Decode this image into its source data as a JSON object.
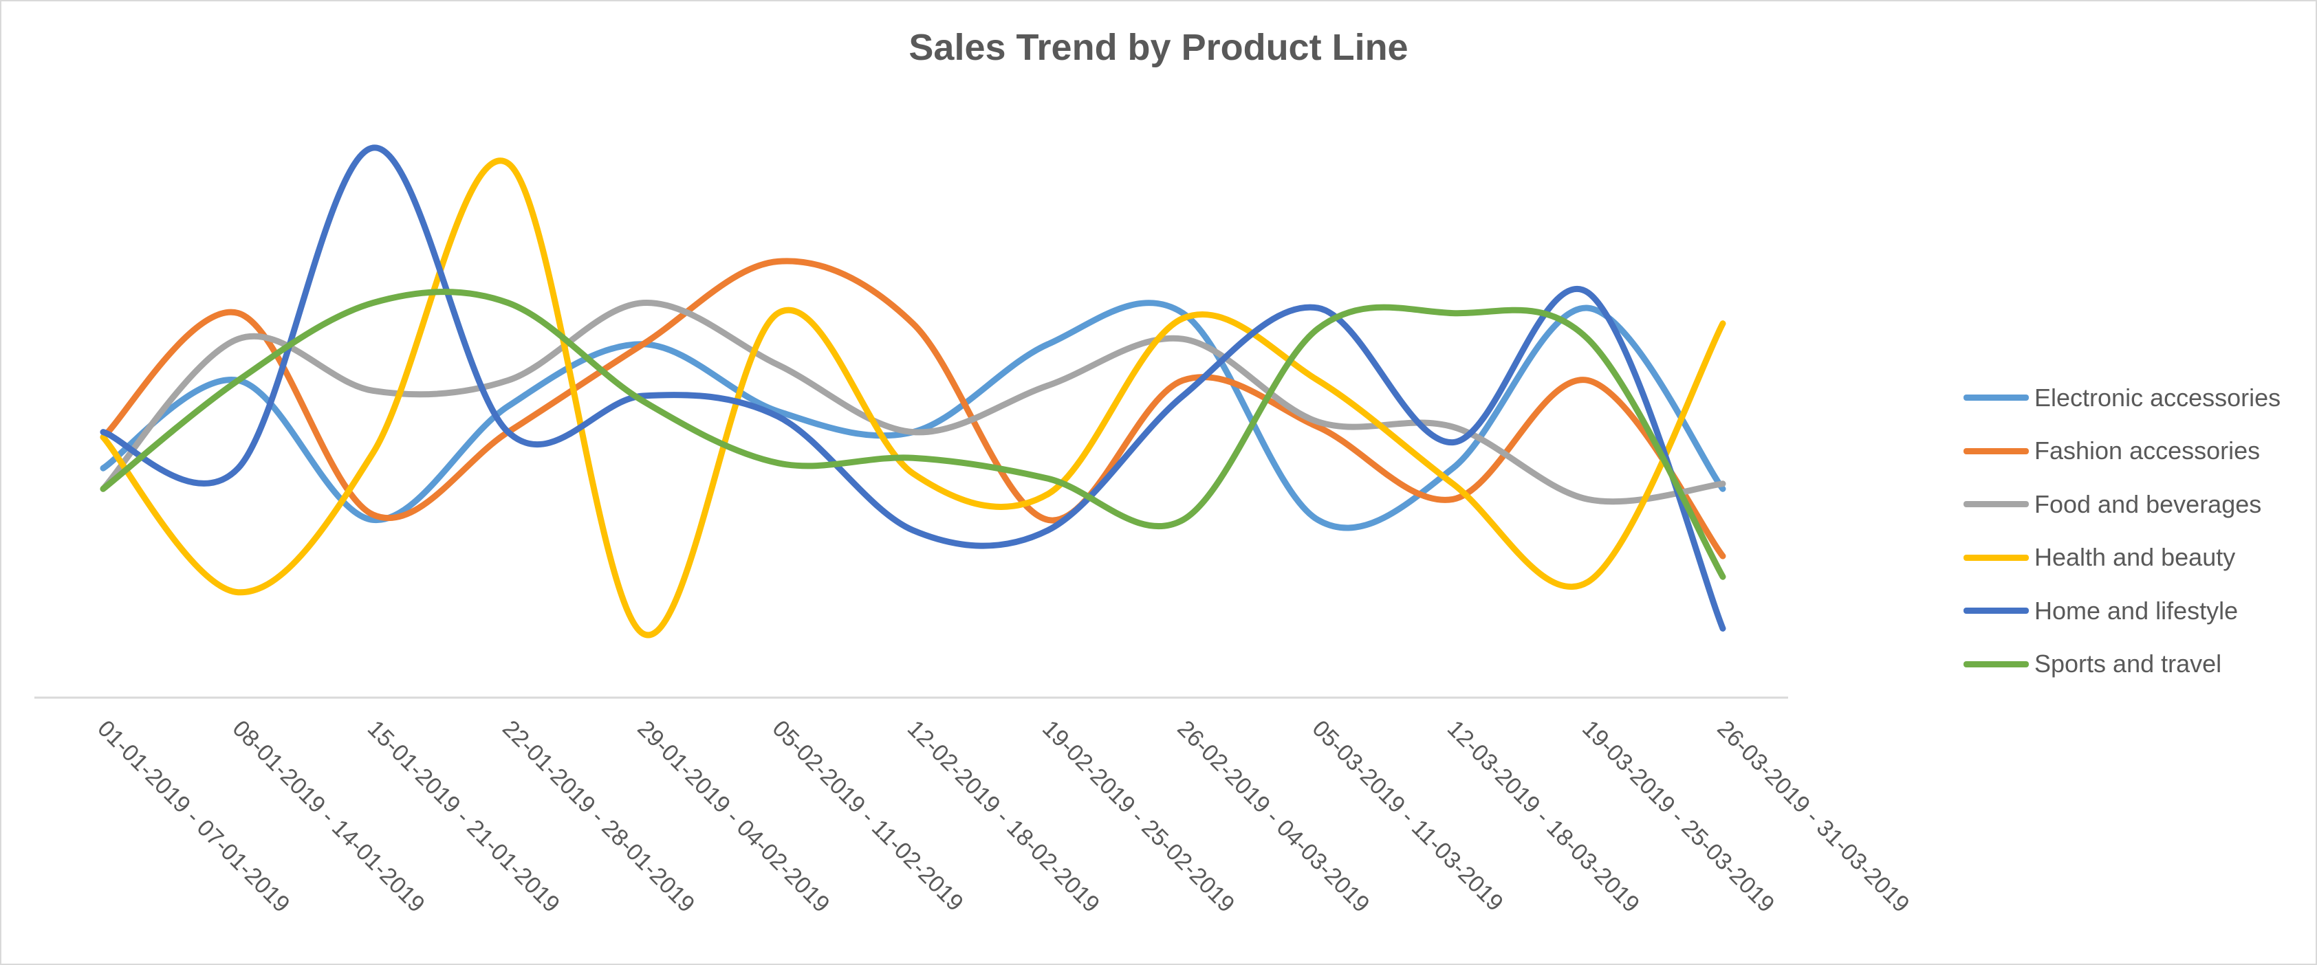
{
  "chart_data": {
    "type": "line",
    "title": "Sales Trend by Product Line",
    "xlabel": "",
    "ylabel": "",
    "smooth": true,
    "grid": false,
    "y_axis_visible": false,
    "legend_position": "right",
    "categories": [
      "01-01-2019 - 07-01-2019",
      "08-01-2019 - 14-01-2019",
      "15-01-2019 - 21-01-2019",
      "22-01-2019 - 28-01-2019",
      "29-01-2019 - 04-02-2019",
      "05-02-2019 - 11-02-2019",
      "12-02-2019 - 18-02-2019",
      "19-02-2019 - 25-02-2019",
      "26-02-2019 - 04-03-2019",
      "05-03-2019 - 11-03-2019",
      "12-03-2019 - 18-03-2019",
      "19-03-2019 - 25-03-2019",
      "26-03-2019 - 31-03-2019"
    ],
    "ylim": [
      0,
      100
    ],
    "series": [
      {
        "name": "Electronic accessories",
        "color": "#5B9BD5",
        "values": [
          38,
          55,
          28,
          50,
          62,
          49,
          45,
          62,
          68,
          28,
          38,
          69,
          34
        ]
      },
      {
        "name": "Fashion accessories",
        "color": "#ED7D31",
        "values": [
          44,
          68,
          29,
          45,
          62,
          78,
          66,
          28,
          55,
          46,
          32,
          55,
          21
        ]
      },
      {
        "name": "Food and beverages",
        "color": "#A5A5A5",
        "values": [
          34,
          63,
          53,
          55,
          70,
          58,
          45,
          54,
          63,
          47,
          46,
          32,
          35
        ]
      },
      {
        "name": "Health and beauty",
        "color": "#FFC000",
        "values": [
          44,
          14,
          41,
          97,
          6,
          68,
          37,
          33,
          67,
          55,
          35,
          16,
          66
        ]
      },
      {
        "name": "Home and lifestyle",
        "color": "#4472C4",
        "values": [
          45,
          38,
          100,
          45,
          52,
          48,
          26,
          26,
          52,
          69,
          43,
          72,
          7
        ]
      },
      {
        "name": "Sports and travel",
        "color": "#70AD47",
        "values": [
          34,
          55,
          70,
          70,
          51,
          39,
          40,
          36,
          28,
          65,
          68,
          63,
          17
        ]
      }
    ]
  }
}
